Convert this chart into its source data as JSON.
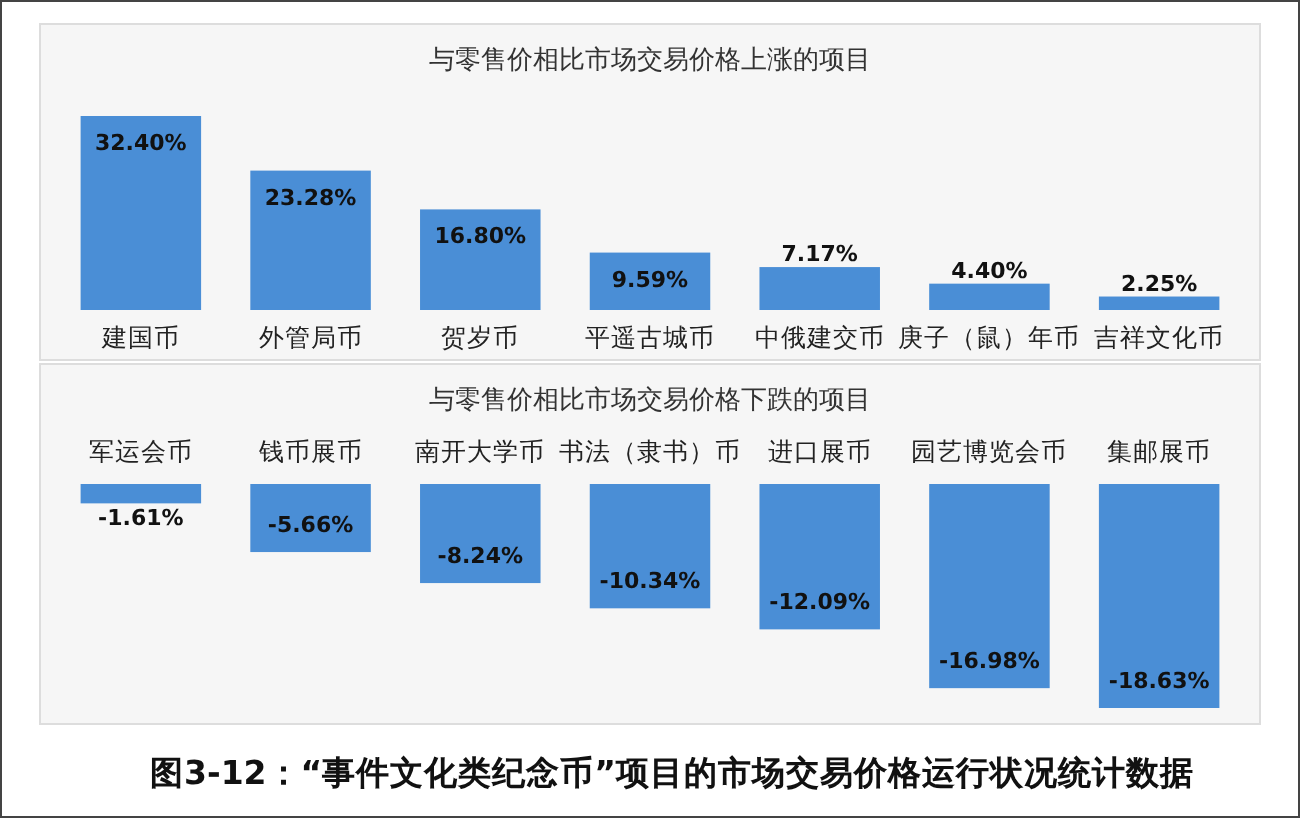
{
  "chart_data": [
    {
      "type": "bar",
      "title": "与零售价相比市场交易价格上涨的项目",
      "categories": [
        "建国币",
        "外管局币",
        "贺岁币",
        "平遥古城币",
        "中俄建交币",
        "庚子（鼠）年币",
        "吉祥文化币"
      ],
      "values": [
        32.4,
        23.28,
        16.8,
        9.59,
        7.17,
        4.4,
        2.25
      ],
      "value_labels": [
        "32.40%",
        "23.28%",
        "16.80%",
        "9.59%",
        "7.17%",
        "4.40%",
        "2.25%"
      ],
      "color": "#4a8ed6"
    },
    {
      "type": "bar",
      "title": "与零售价相比市场交易价格下跌的项目",
      "categories": [
        "军运会币",
        "钱币展币",
        "南开大学币",
        "书法（隶书）币",
        "进口展币",
        "园艺博览会币",
        "集邮展币"
      ],
      "values": [
        -1.61,
        -5.66,
        -8.24,
        -10.34,
        -12.09,
        -16.98,
        -18.63
      ],
      "value_labels": [
        "-1.61%",
        "-5.66%",
        "-8.24%",
        "-10.34%",
        "-12.09%",
        "-16.98%",
        "-18.63%"
      ],
      "color": "#4a8ed6",
      "annotations": [
        "图3-12：“事件文化类纪念币”项目的市场交易价格运行状况统计数据"
      ]
    }
  ]
}
